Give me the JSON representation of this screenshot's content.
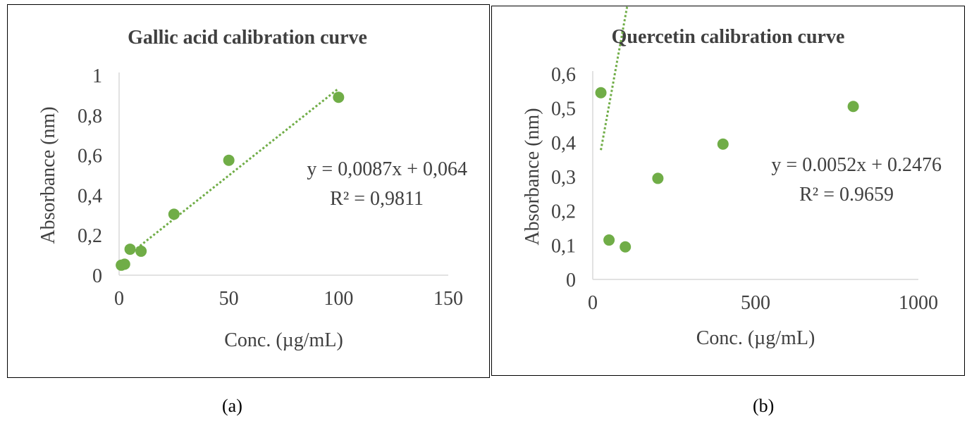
{
  "chart_data": [
    {
      "type": "scatter",
      "title": "Gallic acid calibration curve",
      "xlabel": "Conc. (µg/mL)",
      "ylabel": "Absorbance (nm)",
      "xlim": [
        0,
        150
      ],
      "ylim": [
        0,
        1
      ],
      "x_ticks": [
        "0",
        "50",
        "100",
        "150"
      ],
      "y_ticks": [
        "0",
        "0,2",
        "0,4",
        "0,6",
        "0,8",
        "1"
      ],
      "grid": false,
      "marker_color": "#70AD47",
      "trendline": {
        "style": "dotted",
        "color": "#70AD47",
        "slope": 0.0087,
        "intercept": 0.064,
        "x_range": [
          5,
          100
        ]
      },
      "equation": "y = 0,0087x + 0,064",
      "r_squared": "R² = 0,9811",
      "points": [
        {
          "x": 1,
          "y": 0.05
        },
        {
          "x": 2.5,
          "y": 0.055
        },
        {
          "x": 5,
          "y": 0.13
        },
        {
          "x": 10,
          "y": 0.12
        },
        {
          "x": 25,
          "y": 0.305
        },
        {
          "x": 50,
          "y": 0.575
        },
        {
          "x": 100,
          "y": 0.89
        }
      ],
      "caption": "(a)"
    },
    {
      "type": "scatter",
      "title": "Quercetin calibration curve",
      "xlabel": "Conc. (µg/mL)",
      "ylabel": "Absorbance (nm)",
      "xlim": [
        0,
        1000
      ],
      "ylim": [
        0,
        0.6
      ],
      "x_ticks": [
        "0",
        "500",
        "1000"
      ],
      "y_ticks": [
        "0",
        "0,1",
        "0,2",
        "0,3",
        "0,4",
        "0,5",
        "0,6"
      ],
      "grid": false,
      "marker_color": "#70AD47",
      "trendline": {
        "style": "dotted",
        "color": "#70AD47",
        "slope": 0.0052,
        "intercept": 0.2476,
        "x_range": [
          25,
          800
        ]
      },
      "equation": "y = 0.0052x + 0.2476",
      "r_squared": "R² = 0.9659",
      "points": [
        {
          "x": 25,
          "y": 0.545
        },
        {
          "x": 50,
          "y": 0.115
        },
        {
          "x": 100,
          "y": 0.095
        },
        {
          "x": 200,
          "y": 0.295
        },
        {
          "x": 400,
          "y": 0.395
        },
        {
          "x": 800,
          "y": 0.505
        }
      ],
      "caption": "(b)"
    }
  ]
}
